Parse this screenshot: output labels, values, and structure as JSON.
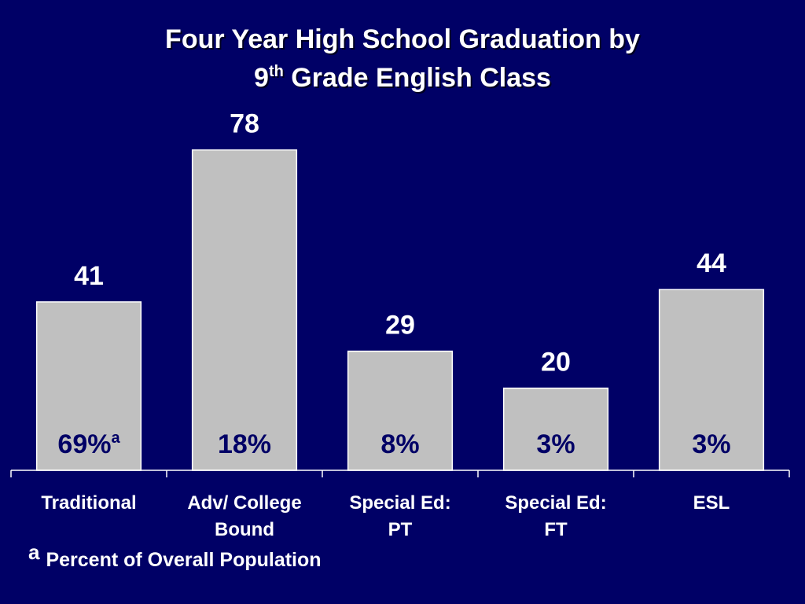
{
  "chart_data": {
    "type": "bar",
    "title_line1": "Four Year High School Graduation by",
    "title_line2_prefix": "9",
    "title_line2_sup": "th",
    "title_line2_rest": " Grade English Class",
    "categories": [
      [
        "Traditional"
      ],
      [
        "Adv/ College",
        "Bound"
      ],
      [
        "Special Ed:",
        "PT"
      ],
      [
        "Special Ed:",
        "FT"
      ],
      [
        "ESL"
      ]
    ],
    "values": [
      41,
      78,
      29,
      20,
      44
    ],
    "percent_of_population": [
      "69%",
      "18%",
      "8%",
      "3%",
      "3%"
    ],
    "first_percent_marker": "a",
    "ylim": [
      0,
      90
    ],
    "footnote_marker": "a",
    "footnote_text": "Percent of Overall Population",
    "colors": {
      "background": "#000066",
      "bar": "#C0C0C0",
      "bar_border": "#FFFFFF",
      "text": "#FFFFFF",
      "percent_text": "#000066"
    }
  }
}
